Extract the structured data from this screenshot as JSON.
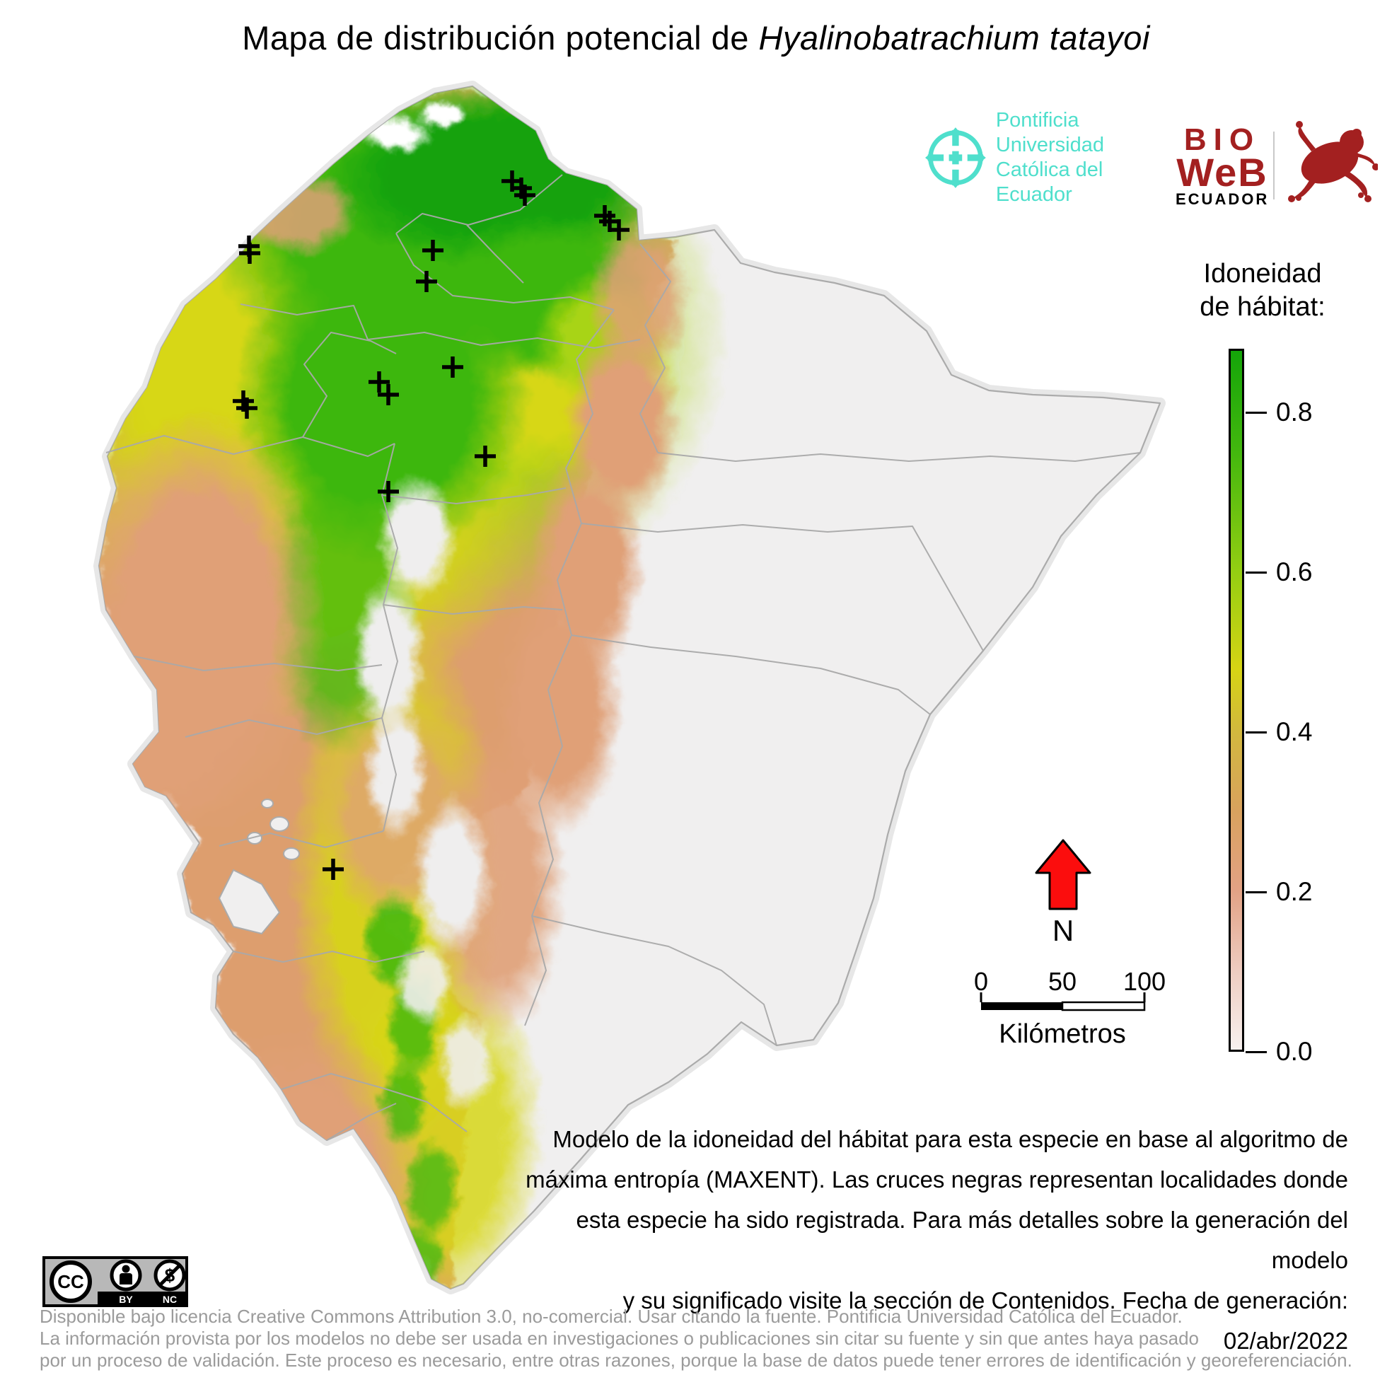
{
  "title": {
    "prefix": "Mapa de distribución potencial de ",
    "species": "Hyalinobatrachium tatayoi"
  },
  "logos": {
    "puce": {
      "line1": "Pontificia Universidad",
      "line2": "Católica del Ecuador",
      "color": "#4fdfcc"
    },
    "bioweb": {
      "line1": "BIO",
      "line2": "WeB",
      "line3": "ECUADOR",
      "color": "#a32020"
    }
  },
  "legend": {
    "title_line1": "Idoneidad",
    "title_line2": "de hábitat:",
    "max_value": 0.88,
    "ticks": [
      {
        "label": "0.8",
        "value": 0.8
      },
      {
        "label": "0.6",
        "value": 0.6
      },
      {
        "label": "0.4",
        "value": 0.4
      },
      {
        "label": "0.2",
        "value": 0.2
      },
      {
        "label": "0.0",
        "value": 0.0
      }
    ],
    "gradient_stops": [
      {
        "value": 0.0,
        "color": "#f8f1ef"
      },
      {
        "value": 0.1,
        "color": "#eeccc0"
      },
      {
        "value": 0.2,
        "color": "#e2a285"
      },
      {
        "value": 0.3,
        "color": "#d9a25e"
      },
      {
        "value": 0.4,
        "color": "#d2b83e"
      },
      {
        "value": 0.48,
        "color": "#d6d414"
      },
      {
        "value": 0.6,
        "color": "#95ce12"
      },
      {
        "value": 0.75,
        "color": "#44b80e"
      },
      {
        "value": 0.88,
        "color": "#14a509"
      }
    ]
  },
  "north_arrow": {
    "label": "N",
    "color": "#fb0d0d"
  },
  "scale_bar": {
    "labels": [
      "0",
      "50",
      "100"
    ],
    "unit": "Kilómetros"
  },
  "description": {
    "lines": [
      "Modelo de la idoneidad del hábitat para esta especie en base al algoritmo de",
      "máxima entropía (MAXENT). Las cruces negras representan localidades donde",
      "esta especie ha sido registrada. Para más detalles sobre la generación del modelo",
      "y su significado visite la sección de Contenidos. Fecha de generación: 02/abr/2022"
    ]
  },
  "license": {
    "cc": "CC",
    "by": "BY",
    "nc": "NC"
  },
  "footer": {
    "lines": [
      "Disponible bajo licencia Creative Commons Attribution 3.0, no-comercial. Usar citando la fuente. Pontificia Universidad Católica del Ecuador.",
      "La información provista por los modelos no debe ser usada en investigaciones o publicaciones sin citar su fuente y sin que antes haya pasado",
      "por un proceso de validación. Este proceso es necesario, entre otras razones, porque la base de datos puede tener errores de identificación y georeferenciación."
    ]
  },
  "map": {
    "region": "Ecuador (continental, provincias)",
    "marker": "plus-cross",
    "country_fill": "#f0efef",
    "border_color": "#a9a9a9",
    "occurrences": [
      [
        724,
        256
      ],
      [
        737,
        266
      ],
      [
        742,
        276
      ],
      [
        855,
        305
      ],
      [
        862,
        313
      ],
      [
        875,
        325
      ],
      [
        352,
        348
      ],
      [
        353,
        358
      ],
      [
        612,
        354
      ],
      [
        603,
        398
      ],
      [
        640,
        519
      ],
      [
        536,
        540
      ],
      [
        549,
        558
      ],
      [
        344,
        567
      ],
      [
        349,
        577
      ],
      [
        686,
        645
      ],
      [
        549,
        695
      ],
      [
        471,
        1229
      ]
    ]
  }
}
